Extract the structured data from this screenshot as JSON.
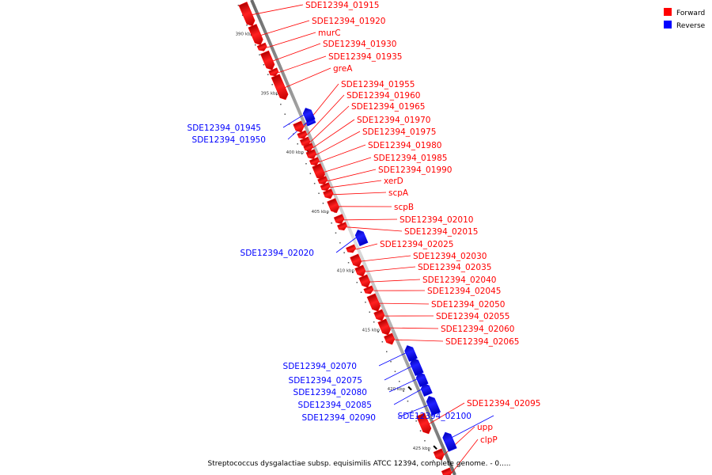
{
  "legend": {
    "forward": {
      "label": "Forward",
      "color": "#ff0000"
    },
    "reverse": {
      "label": "Reverse",
      "color": "#0000ff"
    }
  },
  "caption": "Streptococcus dysgalactiae subsp. equisimilis ATCC 12394, complete genome. - 0.....",
  "backbone_color": "#888888",
  "ticks": [
    {
      "kbp": 390,
      "label": "390 kbp"
    },
    {
      "kbp": 395,
      "label": "395 kbp"
    },
    {
      "kbp": 400,
      "label": "400 kbp"
    },
    {
      "kbp": 405,
      "label": "405 kbp"
    },
    {
      "kbp": 410,
      "label": "410 kbp"
    },
    {
      "kbp": 415,
      "label": "415 kbp"
    },
    {
      "kbp": 420,
      "label": "420 kbp"
    },
    {
      "kbp": 425,
      "label": "425 kbp"
    }
  ],
  "genes": [
    {
      "name": "SDE12394_01915",
      "strand": "forward"
    },
    {
      "name": "SDE12394_01920",
      "strand": "forward"
    },
    {
      "name": "murC",
      "strand": "forward"
    },
    {
      "name": "SDE12394_01930",
      "strand": "forward"
    },
    {
      "name": "SDE12394_01935",
      "strand": "forward"
    },
    {
      "name": "greA",
      "strand": "forward"
    },
    {
      "name": "SDE12394_01945",
      "strand": "reverse"
    },
    {
      "name": "SDE12394_01950",
      "strand": "reverse"
    },
    {
      "name": "SDE12394_01955",
      "strand": "forward"
    },
    {
      "name": "SDE12394_01960",
      "strand": "forward"
    },
    {
      "name": "SDE12394_01965",
      "strand": "forward"
    },
    {
      "name": "SDE12394_01970",
      "strand": "forward"
    },
    {
      "name": "SDE12394_01975",
      "strand": "forward"
    },
    {
      "name": "SDE12394_01980",
      "strand": "forward"
    },
    {
      "name": "SDE12394_01985",
      "strand": "forward"
    },
    {
      "name": "SDE12394_01990",
      "strand": "forward"
    },
    {
      "name": "xerD",
      "strand": "forward"
    },
    {
      "name": "scpA",
      "strand": "forward"
    },
    {
      "name": "scpB",
      "strand": "forward"
    },
    {
      "name": "SDE12394_02010",
      "strand": "forward"
    },
    {
      "name": "SDE12394_02015",
      "strand": "forward"
    },
    {
      "name": "SDE12394_02020",
      "strand": "reverse"
    },
    {
      "name": "SDE12394_02025",
      "strand": "forward"
    },
    {
      "name": "SDE12394_02030",
      "strand": "forward"
    },
    {
      "name": "SDE12394_02035",
      "strand": "forward"
    },
    {
      "name": "SDE12394_02040",
      "strand": "forward"
    },
    {
      "name": "SDE12394_02045",
      "strand": "forward"
    },
    {
      "name": "SDE12394_02050",
      "strand": "forward"
    },
    {
      "name": "SDE12394_02055",
      "strand": "forward"
    },
    {
      "name": "SDE12394_02060",
      "strand": "forward"
    },
    {
      "name": "SDE12394_02065",
      "strand": "forward"
    },
    {
      "name": "SDE12394_02070",
      "strand": "reverse"
    },
    {
      "name": "SDE12394_02075",
      "strand": "reverse"
    },
    {
      "name": "SDE12394_02080",
      "strand": "reverse"
    },
    {
      "name": "SDE12394_02085",
      "strand": "reverse"
    },
    {
      "name": "SDE12394_02090",
      "strand": "reverse"
    },
    {
      "name": "SDE12394_02095",
      "strand": "forward"
    },
    {
      "name": "SDE12394_02100",
      "strand": "reverse"
    },
    {
      "name": "upp",
      "strand": "forward"
    },
    {
      "name": "clpP",
      "strand": "forward"
    }
  ]
}
